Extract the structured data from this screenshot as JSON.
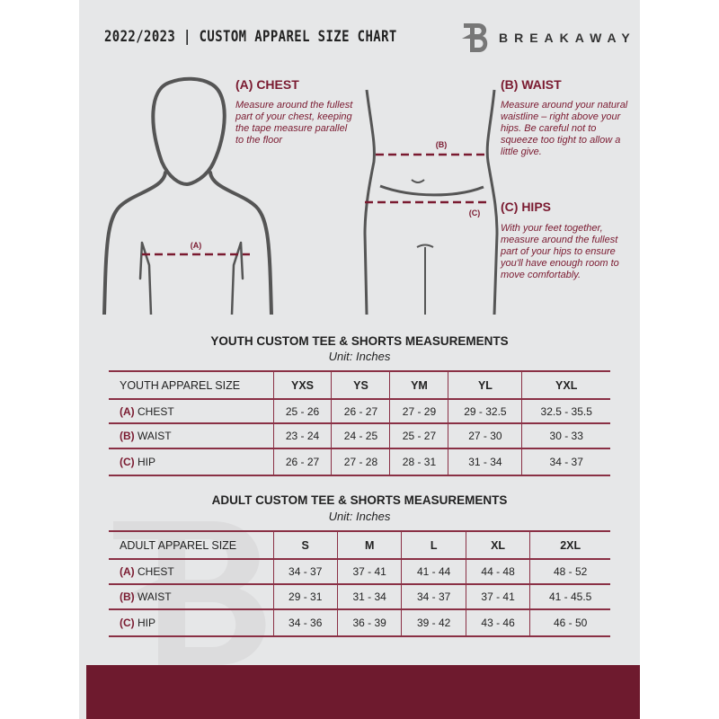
{
  "header": {
    "title": "2022/2023 | CUSTOM APPAREL SIZE CHART",
    "brand": "BREAKAWAY",
    "logo_letter": "B"
  },
  "chest": {
    "heading": "(A) CHEST",
    "text": "Measure around the fullest part of your chest, keeping the tape measure parallel to the floor",
    "marker": "(A)"
  },
  "waist": {
    "heading": "(B) WAIST",
    "text": "Measure around your natural waistline – right above your hips. Be careful not to squeeze too tight to allow a little give.",
    "marker": "(B)"
  },
  "hips": {
    "heading": "(C) HIPS",
    "text": "With your feet together, measure around the fullest part of your hips to ensure you'll have enough room to move comfortably.",
    "marker": "(C)"
  },
  "colors": {
    "accent": "#7a1a30",
    "band": "#6e1a2e",
    "page": "#e6e7e8"
  },
  "youth": {
    "title": "YOUTH CUSTOM TEE & SHORTS MEASUREMENTS",
    "unit": "Unit: Inches",
    "header": "YOUTH APPAREL SIZE",
    "sizes": [
      "YXS",
      "YS",
      "YM",
      "YL",
      "YXL"
    ],
    "rows": [
      {
        "code": "(A)",
        "name": "CHEST",
        "values": [
          "25 - 26",
          "26 - 27",
          "27 - 29",
          "29 - 32.5",
          "32.5 - 35.5"
        ]
      },
      {
        "code": "(B)",
        "name": "WAIST",
        "values": [
          "23 - 24",
          "24 - 25",
          "25 - 27",
          "27 - 30",
          "30 - 33"
        ]
      },
      {
        "code": "(C)",
        "name": "HIP",
        "values": [
          "26 - 27",
          "27 - 28",
          "28 - 31",
          "31 - 34",
          "34 - 37"
        ]
      }
    ]
  },
  "adult": {
    "title": "ADULT CUSTOM TEE & SHORTS MEASUREMENTS",
    "unit": "Unit: Inches",
    "header": "ADULT APPAREL SIZE",
    "sizes": [
      "S",
      "M",
      "L",
      "XL",
      "2XL"
    ],
    "rows": [
      {
        "code": "(A)",
        "name": "CHEST",
        "values": [
          "34 - 37",
          "37 - 41",
          "41 - 44",
          "44 - 48",
          "48 - 52"
        ]
      },
      {
        "code": "(B)",
        "name": "WAIST",
        "values": [
          "29 - 31",
          "31 - 34",
          "34 - 37",
          "37 - 41",
          "41 - 45.5"
        ]
      },
      {
        "code": "(C)",
        "name": "HIP",
        "values": [
          "34 - 36",
          "36 - 39",
          "39 - 42",
          "43 - 46",
          "46 - 50"
        ]
      }
    ]
  }
}
